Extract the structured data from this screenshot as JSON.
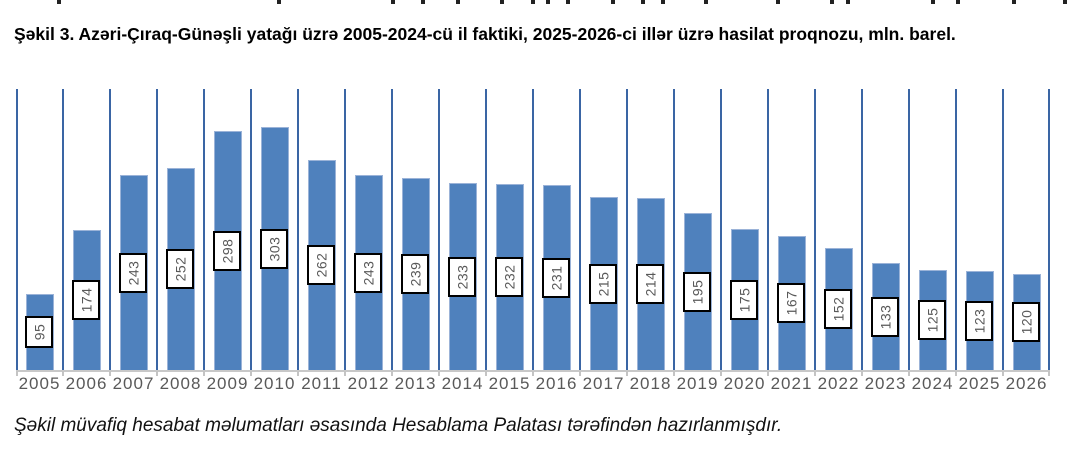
{
  "title": {
    "text": "Şəkil 3. Azəri-Çıraq-Günəşli yatağı üzrə 2005-2024-cü il faktiki, 2025-2026-ci illər üzrə hasilat proqnozu, mln. barel."
  },
  "footer": {
    "text": "Şəkil müvafiq hesabat məlumatları əsasında Hesablama Palatası tərəfindən hazırlanmışdır."
  },
  "chart_data": {
    "type": "bar",
    "title": "",
    "xlabel": "",
    "ylabel": "",
    "categories": [
      "2005",
      "2006",
      "2007",
      "2008",
      "2009",
      "2010",
      "2011",
      "2012",
      "2013",
      "2014",
      "2015",
      "2016",
      "2017",
      "2018",
      "2019",
      "2020",
      "2021",
      "2022",
      "2023",
      "2024",
      "2025",
      "2026"
    ],
    "values": [
      95,
      174,
      243,
      252,
      298,
      303,
      262,
      243,
      239,
      233,
      232,
      231,
      215,
      214,
      195,
      175,
      167,
      152,
      133,
      125,
      123,
      120
    ],
    "ylim": [
      0,
      350
    ],
    "grid": "vertical lines at category boundaries",
    "legend": "none",
    "data_labels": "values shown rotated 90° in white boxes centered on bars",
    "colors": {
      "bar": "#4F81BD",
      "bar_edge": "#9BB3D8",
      "gridline": "#3A65A4",
      "axis": "#C8C8C8",
      "tick": "#C4C4C4",
      "axis_text": "#595959",
      "label_text": "#595959",
      "label_box_bg": "#FFFFFF",
      "label_box_border": "#000000"
    }
  }
}
